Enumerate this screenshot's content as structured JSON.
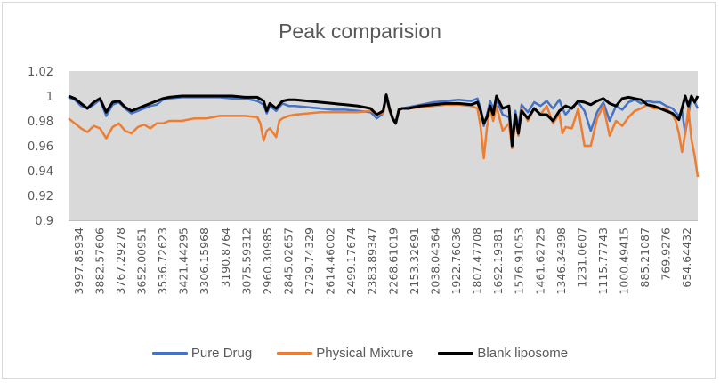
{
  "chart_data": {
    "type": "line",
    "title": "Peak comparision",
    "xlabel": "",
    "ylabel": "",
    "ylim": [
      0.9,
      1.02
    ],
    "yticks": [
      "1.02",
      "1",
      "0.98",
      "0.96",
      "0.94",
      "0.92",
      "0.9"
    ],
    "ytick_values": [
      1.02,
      1.0,
      0.98,
      0.96,
      0.94,
      0.92,
      0.9
    ],
    "xticks": [
      "3997.85934",
      "3882.57606",
      "3767.29278",
      "3652.00951",
      "3536.72623",
      "3421.44295",
      "3306.15968",
      "3190.8764",
      "3075.59312",
      "2960.30985",
      "2845.02657",
      "2729.74329",
      "2614.46002",
      "2499.17674",
      "2383.89347",
      "2268.61019",
      "2153.32691",
      "2038.04364",
      "1922.76036",
      "1807.47708",
      "1692.19381",
      "1576.91053",
      "1461.62725",
      "1346.34398",
      "1231.0607",
      "1115.77743",
      "1000.49415",
      "885.21087",
      "769.9276",
      "654.64432"
    ],
    "xrange_wavenumber": [
      3997.85934,
      600
    ],
    "grid": false,
    "legend_position": "bottom",
    "series": [
      {
        "name": "Pure Drug",
        "color": "#4472C4",
        "x": [
          0,
          0.01,
          0.02,
          0.03,
          0.04,
          0.05,
          0.06,
          0.07,
          0.08,
          0.09,
          0.1,
          0.11,
          0.12,
          0.13,
          0.14,
          0.15,
          0.16,
          0.18,
          0.2,
          0.22,
          0.24,
          0.26,
          0.28,
          0.3,
          0.31,
          0.315,
          0.32,
          0.33,
          0.34,
          0.35,
          0.36,
          0.38,
          0.4,
          0.42,
          0.44,
          0.46,
          0.48,
          0.49,
          0.5,
          0.505,
          0.51,
          0.515,
          0.52,
          0.525,
          0.53,
          0.54,
          0.56,
          0.58,
          0.6,
          0.62,
          0.64,
          0.65,
          0.655,
          0.66,
          0.665,
          0.67,
          0.675,
          0.68,
          0.69,
          0.7,
          0.705,
          0.71,
          0.715,
          0.72,
          0.73,
          0.74,
          0.75,
          0.76,
          0.77,
          0.78,
          0.785,
          0.79,
          0.8,
          0.81,
          0.82,
          0.83,
          0.84,
          0.85,
          0.86,
          0.87,
          0.88,
          0.89,
          0.9,
          0.91,
          0.92,
          0.93,
          0.94,
          0.95,
          0.96,
          0.97,
          0.975,
          0.98,
          0.985,
          0.99,
          0.995,
          1.0
        ],
        "y": [
          0.999,
          0.997,
          0.992,
          0.99,
          0.993,
          0.997,
          0.984,
          0.993,
          0.995,
          0.99,
          0.986,
          0.988,
          0.99,
          0.992,
          0.993,
          0.997,
          0.998,
          0.999,
          0.999,
          0.999,
          0.999,
          0.998,
          0.998,
          0.996,
          0.993,
          0.986,
          0.992,
          0.988,
          0.994,
          0.992,
          0.992,
          0.991,
          0.99,
          0.989,
          0.989,
          0.988,
          0.987,
          0.982,
          0.986,
          0.999,
          0.988,
          0.983,
          0.978,
          0.988,
          0.99,
          0.991,
          0.993,
          0.995,
          0.996,
          0.997,
          0.996,
          0.998,
          0.99,
          0.976,
          0.985,
          0.996,
          0.99,
          0.997,
          0.985,
          0.983,
          0.965,
          0.988,
          0.975,
          0.993,
          0.987,
          0.995,
          0.992,
          0.996,
          0.99,
          0.997,
          0.99,
          0.985,
          0.991,
          0.995,
          0.988,
          0.972,
          0.987,
          0.995,
          0.98,
          0.992,
          0.989,
          0.995,
          0.997,
          0.994,
          0.996,
          0.995,
          0.995,
          0.992,
          0.99,
          0.984,
          0.988,
          0.97,
          0.985,
          1.0,
          0.995,
          0.99
        ]
      },
      {
        "name": "Physical Mixture",
        "color": "#ED7D31",
        "x": [
          0,
          0.01,
          0.02,
          0.03,
          0.04,
          0.05,
          0.06,
          0.07,
          0.08,
          0.09,
          0.1,
          0.11,
          0.12,
          0.13,
          0.14,
          0.15,
          0.16,
          0.18,
          0.2,
          0.22,
          0.24,
          0.26,
          0.28,
          0.3,
          0.305,
          0.31,
          0.315,
          0.32,
          0.33,
          0.335,
          0.34,
          0.35,
          0.36,
          0.38,
          0.4,
          0.42,
          0.44,
          0.46,
          0.48,
          0.49,
          0.5,
          0.505,
          0.51,
          0.515,
          0.52,
          0.525,
          0.53,
          0.54,
          0.56,
          0.58,
          0.6,
          0.62,
          0.64,
          0.65,
          0.655,
          0.66,
          0.665,
          0.67,
          0.675,
          0.68,
          0.69,
          0.7,
          0.705,
          0.71,
          0.715,
          0.72,
          0.73,
          0.74,
          0.75,
          0.76,
          0.77,
          0.78,
          0.785,
          0.79,
          0.8,
          0.81,
          0.82,
          0.83,
          0.84,
          0.85,
          0.86,
          0.87,
          0.88,
          0.89,
          0.9,
          0.91,
          0.92,
          0.93,
          0.94,
          0.95,
          0.96,
          0.965,
          0.97,
          0.975,
          0.98,
          0.985,
          0.99,
          0.995,
          1.0
        ],
        "y": [
          0.982,
          0.978,
          0.974,
          0.971,
          0.976,
          0.974,
          0.966,
          0.975,
          0.978,
          0.972,
          0.97,
          0.975,
          0.977,
          0.974,
          0.978,
          0.978,
          0.98,
          0.98,
          0.982,
          0.982,
          0.984,
          0.984,
          0.984,
          0.983,
          0.978,
          0.964,
          0.972,
          0.974,
          0.967,
          0.98,
          0.982,
          0.984,
          0.985,
          0.986,
          0.987,
          0.987,
          0.987,
          0.987,
          0.988,
          0.986,
          0.986,
          1.001,
          0.988,
          0.982,
          0.978,
          0.988,
          0.99,
          0.99,
          0.991,
          0.992,
          0.993,
          0.993,
          0.992,
          0.99,
          0.975,
          0.95,
          0.975,
          0.99,
          0.98,
          0.992,
          0.972,
          0.978,
          0.958,
          0.98,
          0.968,
          0.99,
          0.98,
          0.99,
          0.985,
          0.992,
          0.978,
          0.986,
          0.97,
          0.975,
          0.974,
          0.99,
          0.96,
          0.96,
          0.982,
          0.992,
          0.968,
          0.98,
          0.976,
          0.983,
          0.988,
          0.99,
          0.993,
          0.99,
          0.99,
          0.99,
          0.985,
          0.98,
          0.97,
          0.955,
          0.97,
          0.99,
          0.965,
          0.952,
          0.935
        ]
      },
      {
        "name": "Blank liposome",
        "color": "#000000",
        "x": [
          0,
          0.01,
          0.02,
          0.03,
          0.04,
          0.05,
          0.06,
          0.07,
          0.08,
          0.09,
          0.1,
          0.11,
          0.12,
          0.13,
          0.14,
          0.15,
          0.16,
          0.18,
          0.2,
          0.22,
          0.24,
          0.26,
          0.28,
          0.3,
          0.31,
          0.315,
          0.32,
          0.33,
          0.34,
          0.35,
          0.36,
          0.38,
          0.4,
          0.42,
          0.44,
          0.46,
          0.48,
          0.49,
          0.5,
          0.505,
          0.51,
          0.515,
          0.52,
          0.525,
          0.53,
          0.54,
          0.56,
          0.58,
          0.6,
          0.62,
          0.64,
          0.65,
          0.655,
          0.66,
          0.665,
          0.67,
          0.675,
          0.68,
          0.69,
          0.7,
          0.705,
          0.71,
          0.715,
          0.72,
          0.73,
          0.74,
          0.75,
          0.76,
          0.77,
          0.78,
          0.79,
          0.8,
          0.81,
          0.82,
          0.83,
          0.84,
          0.85,
          0.86,
          0.87,
          0.88,
          0.89,
          0.9,
          0.91,
          0.92,
          0.93,
          0.94,
          0.95,
          0.96,
          0.97,
          0.975,
          0.98,
          0.985,
          0.99,
          0.995,
          1.0
        ],
        "y": [
          1.0,
          0.998,
          0.994,
          0.99,
          0.995,
          0.998,
          0.987,
          0.995,
          0.996,
          0.991,
          0.988,
          0.99,
          0.992,
          0.994,
          0.996,
          0.998,
          0.999,
          1.0,
          1.0,
          1.0,
          1.0,
          1.0,
          0.999,
          0.999,
          0.996,
          0.988,
          0.994,
          0.99,
          0.996,
          0.997,
          0.997,
          0.996,
          0.995,
          0.994,
          0.993,
          0.992,
          0.99,
          0.985,
          0.988,
          1.001,
          0.99,
          0.982,
          0.978,
          0.989,
          0.99,
          0.99,
          0.992,
          0.993,
          0.994,
          0.994,
          0.993,
          0.995,
          0.988,
          0.978,
          0.983,
          0.992,
          0.985,
          1.0,
          0.99,
          0.992,
          0.96,
          0.985,
          0.97,
          0.988,
          0.982,
          0.99,
          0.985,
          0.985,
          0.98,
          0.988,
          0.992,
          0.99,
          0.996,
          0.995,
          0.993,
          0.996,
          0.998,
          0.994,
          0.992,
          0.998,
          0.999,
          0.998,
          0.997,
          0.993,
          0.992,
          0.99,
          0.988,
          0.986,
          0.981,
          0.99,
          1.0,
          0.992,
          1.0,
          0.995,
          1.0
        ]
      }
    ]
  }
}
